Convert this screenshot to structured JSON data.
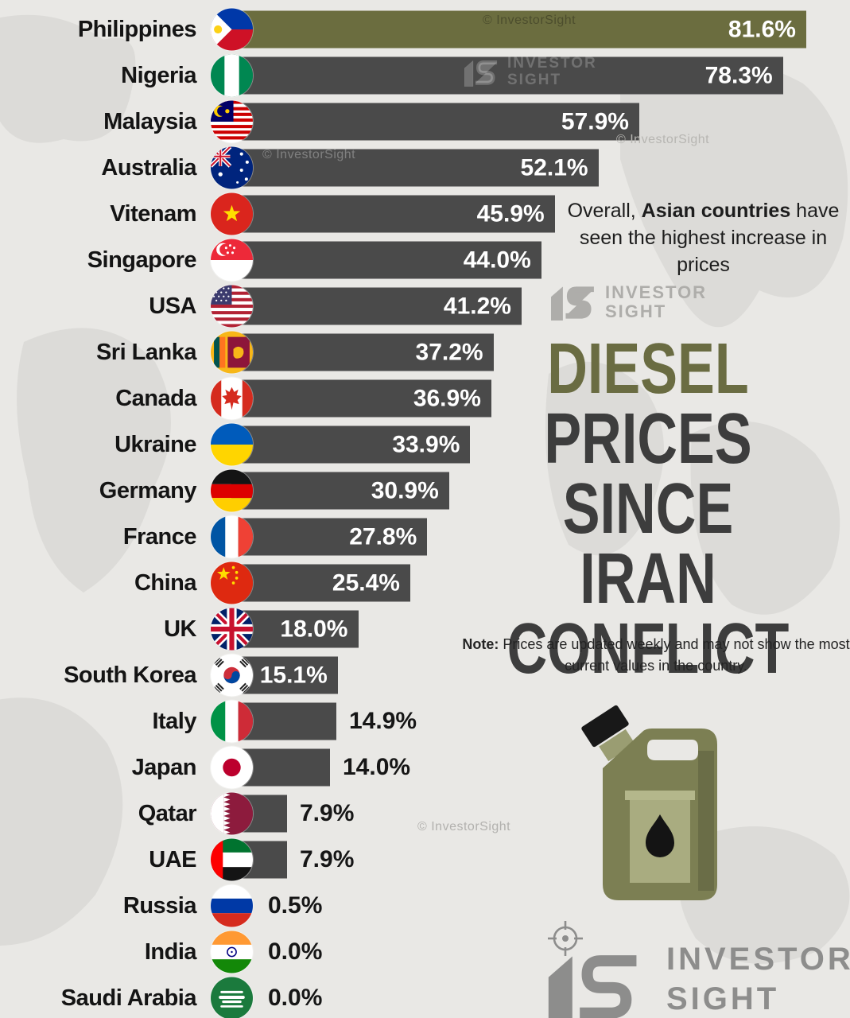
{
  "watermark": {
    "copyright": "© InvestorSight",
    "brand_top": "INVESTOR",
    "brand_bottom": "SIGHT"
  },
  "annotation": {
    "prefix": "Overall, ",
    "highlight": "Asian countries",
    "rest": " have seen the highest increase in prices"
  },
  "title": {
    "line1": "DIESEL",
    "line2": "PRICES",
    "line3": "SINCE IRAN",
    "line4": "CONFLICT",
    "accent_color": "#6a6c42",
    "text_color": "#3d3d3d"
  },
  "note": {
    "label": "Note:",
    "text": " Prices are updated weekly and may not show the most current values in the country."
  },
  "logo": {
    "name_line1": "INVESTOR",
    "name_line2": "SIGHT"
  },
  "colors": {
    "background": "#e9e8e5",
    "map_shape": "#dcdbd8",
    "bar": "#4a4a4a",
    "bar_highlight": "#6b6d3f",
    "label_text": "#141414",
    "value_text_inside": "#ffffff",
    "value_text_outside": "#161616",
    "logo_gray": "#8d8d8c"
  },
  "chart_data": {
    "type": "bar",
    "orientation": "horizontal",
    "unit": "%",
    "xlim": [
      0,
      85
    ],
    "grid": false,
    "legend": false,
    "title": "DIESEL PRICES SINCE IRAN CONFLICT",
    "highlight_category": "Philippines",
    "categories": [
      "Philippines",
      "Nigeria",
      "Malaysia",
      "Australia",
      "Vitenam",
      "Singapore",
      "USA",
      "Sri Lanka",
      "Canada",
      "Ukraine",
      "Germany",
      "France",
      "China",
      "UK",
      "South Korea",
      "Italy",
      "Japan",
      "Qatar",
      "UAE",
      "Russia",
      "India",
      "Saudi Arabia"
    ],
    "values": [
      81.6,
      78.3,
      57.9,
      52.1,
      45.9,
      44.0,
      41.2,
      37.2,
      36.9,
      33.9,
      30.9,
      27.8,
      25.4,
      18.0,
      15.1,
      14.9,
      14.0,
      7.9,
      7.9,
      0.5,
      0.0,
      0.0
    ],
    "rows": [
      {
        "country": "Philippines",
        "value": 81.6,
        "label": "81.6%",
        "flag": "ph",
        "icon": "philippines-flag-icon"
      },
      {
        "country": "Nigeria",
        "value": 78.3,
        "label": "78.3%",
        "flag": "ng",
        "icon": "nigeria-flag-icon"
      },
      {
        "country": "Malaysia",
        "value": 57.9,
        "label": "57.9%",
        "flag": "my",
        "icon": "malaysia-flag-icon"
      },
      {
        "country": "Australia",
        "value": 52.1,
        "label": "52.1%",
        "flag": "au",
        "icon": "australia-flag-icon"
      },
      {
        "country": "Vitenam",
        "value": 45.9,
        "label": "45.9%",
        "flag": "vn",
        "icon": "vietnam-flag-icon"
      },
      {
        "country": "Singapore",
        "value": 44.0,
        "label": "44.0%",
        "flag": "sg",
        "icon": "singapore-flag-icon"
      },
      {
        "country": "USA",
        "value": 41.2,
        "label": "41.2%",
        "flag": "us",
        "icon": "usa-flag-icon"
      },
      {
        "country": "Sri Lanka",
        "value": 37.2,
        "label": "37.2%",
        "flag": "lk",
        "icon": "sri-lanka-flag-icon"
      },
      {
        "country": "Canada",
        "value": 36.9,
        "label": "36.9%",
        "flag": "ca",
        "icon": "canada-flag-icon"
      },
      {
        "country": "Ukraine",
        "value": 33.9,
        "label": "33.9%",
        "flag": "ua",
        "icon": "ukraine-flag-icon"
      },
      {
        "country": "Germany",
        "value": 30.9,
        "label": "30.9%",
        "flag": "de",
        "icon": "germany-flag-icon"
      },
      {
        "country": "France",
        "value": 27.8,
        "label": "27.8%",
        "flag": "fr",
        "icon": "france-flag-icon"
      },
      {
        "country": "China",
        "value": 25.4,
        "label": "25.4%",
        "flag": "cn",
        "icon": "china-flag-icon"
      },
      {
        "country": "UK",
        "value": 18.0,
        "label": "18.0%",
        "flag": "gb",
        "icon": "uk-flag-icon"
      },
      {
        "country": "South Korea",
        "value": 15.1,
        "label": "15.1%",
        "flag": "kr",
        "icon": "south-korea-flag-icon"
      },
      {
        "country": "Italy",
        "value": 14.9,
        "label": "14.9%",
        "flag": "it",
        "icon": "italy-flag-icon"
      },
      {
        "country": "Japan",
        "value": 14.0,
        "label": "14.0%",
        "flag": "jp",
        "icon": "japan-flag-icon"
      },
      {
        "country": "Qatar",
        "value": 7.9,
        "label": "7.9%",
        "flag": "qa",
        "icon": "qatar-flag-icon"
      },
      {
        "country": "UAE",
        "value": 7.9,
        "label": "7.9%",
        "flag": "ae",
        "icon": "uae-flag-icon"
      },
      {
        "country": "Russia",
        "value": 0.5,
        "label": "0.5%",
        "flag": "ru",
        "icon": "russia-flag-icon"
      },
      {
        "country": "India",
        "value": 0.0,
        "label": "0.0%",
        "flag": "in",
        "icon": "india-flag-icon"
      },
      {
        "country": "Saudi Arabia",
        "value": 0.0,
        "label": "0.0%",
        "flag": "sa",
        "icon": "saudi-arabia-flag-icon"
      }
    ]
  }
}
